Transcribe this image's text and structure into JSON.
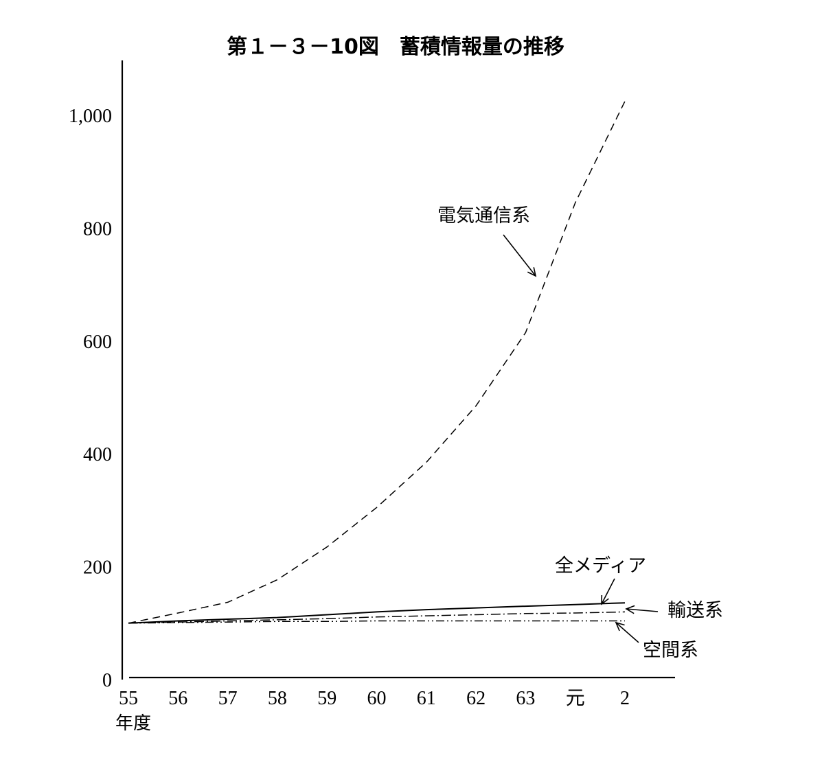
{
  "chart_data": {
    "type": "line",
    "title": "第１－３－10図　蓄積情報量の推移",
    "xlabel": "年度",
    "ylabel": "",
    "categories": [
      "55",
      "56",
      "57",
      "58",
      "59",
      "60",
      "61",
      "62",
      "63",
      "元",
      "2"
    ],
    "y_ticks": [
      "0",
      "200",
      "400",
      "600",
      "800",
      "1,000"
    ],
    "ylim": [
      0,
      1080
    ],
    "grid": false,
    "legend": "none (series labeled directly with arrows)",
    "series": [
      {
        "name": "電気通信系",
        "style": "dashed",
        "values": [
          100,
          118,
          137,
          177,
          235,
          305,
          385,
          485,
          615,
          845,
          1025
        ]
      },
      {
        "name": "全メディア",
        "style": "solid",
        "values": [
          100,
          104,
          107,
          110,
          115,
          120,
          124,
          127,
          130,
          133,
          136
        ]
      },
      {
        "name": "輸送系",
        "style": "dash-dot",
        "values": [
          100,
          102,
          104,
          106,
          108,
          111,
          113,
          115,
          117,
          118,
          120
        ]
      },
      {
        "name": "空間系",
        "style": "dash-dot-dot",
        "values": [
          100,
          101,
          102,
          103,
          103,
          104,
          104,
          104,
          104,
          104,
          104
        ]
      }
    ],
    "colors": {
      "ink": "#000000",
      "background": "#ffffff"
    }
  }
}
